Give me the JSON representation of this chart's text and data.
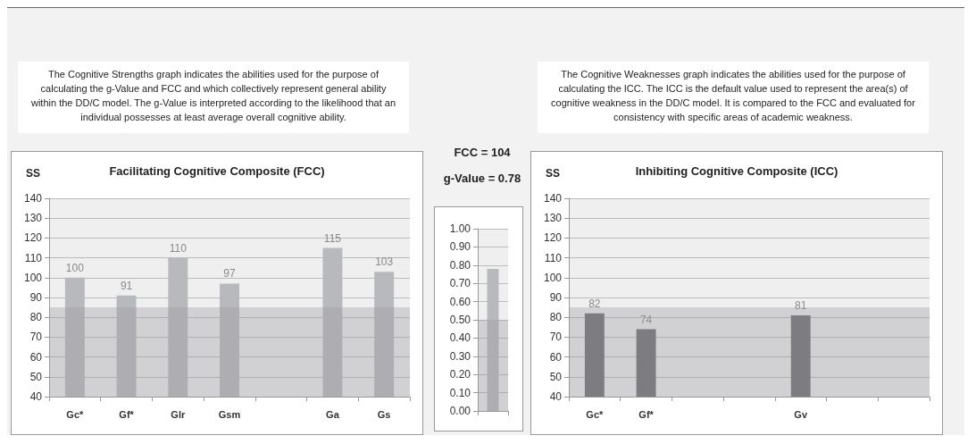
{
  "chart_data": [
    {
      "type": "bar",
      "title": "Facilitating Cognitive Composite (FCC)",
      "ylabel": "SS",
      "annotations": [
        "The Cognitive Strengths graph indicates the abilities used for the purpose of calculating the g-Value and FCC and which collectively represent general ability within the DD/C model. The g-Value is interpreted according to the likelihood that an individual possesses at least average overall cognitive ability."
      ],
      "categories": [
        "Gc*",
        "Gf*",
        "Glr",
        "Gsm",
        null,
        "Ga",
        "Gs"
      ],
      "values": [
        100,
        91,
        110,
        97,
        null,
        115,
        103
      ],
      "color": "#b8b9bc",
      "ylim": [
        40,
        140
      ],
      "yticks": [
        40,
        50,
        60,
        70,
        80,
        90,
        100,
        110,
        120,
        130,
        140
      ],
      "grid": "y",
      "data_labels": true,
      "bands": [
        {
          "axis": "y",
          "from": 40,
          "to": 85,
          "color": "#9b9ca0"
        }
      ]
    },
    {
      "type": "bar",
      "title": "FCC = 104",
      "subtitle": "g-Value = 0.78",
      "categories": [
        null
      ],
      "values": [
        0.78
      ],
      "color": "#b8b9bc",
      "ylim": [
        0,
        1
      ],
      "yticks": [
        {
          "value": 0,
          "label": "0.00"
        },
        {
          "value": 0.1,
          "label": "0.10"
        },
        {
          "value": 0.2,
          "label": "0.20"
        },
        {
          "value": 0.3,
          "label": "0.30"
        },
        {
          "value": 0.4,
          "label": "0.40"
        },
        {
          "value": 0.5,
          "label": "0.50"
        },
        {
          "value": 0.6,
          "label": "0.60"
        },
        {
          "value": 0.7,
          "label": "0.70"
        },
        {
          "value": 0.8,
          "label": "0.80"
        },
        {
          "value": 0.9,
          "label": "0.90"
        },
        {
          "value": 1,
          "label": "1.00"
        }
      ],
      "grid": "y",
      "bands": [
        {
          "axis": "y",
          "from": 0,
          "to": 0.5,
          "color": "#9b9ca0"
        }
      ]
    },
    {
      "type": "bar",
      "title": "Inhibiting Cognitive Composite (ICC)",
      "ylabel": "SS",
      "annotations": [
        "The Cognitive Weaknesses graph indicates the abilities used for the purpose of calculating the ICC. The ICC is the default value used to represent the area(s) of cognitive weakness in the DD/C model. It is compared to the FCC and evaluated for consistency with specific areas of academic weakness."
      ],
      "categories": [
        "Gc*",
        "Gf*",
        null,
        null,
        "Gv",
        null,
        null
      ],
      "values": [
        82,
        74,
        null,
        null,
        81,
        null,
        null
      ],
      "color": "#6d6e71",
      "ylim": [
        40,
        140
      ],
      "yticks": [
        40,
        50,
        60,
        70,
        80,
        90,
        100,
        110,
        120,
        130,
        140
      ],
      "grid": "y",
      "data_labels": true,
      "bands": [
        {
          "axis": "y",
          "from": 40,
          "to": 85,
          "color": "#9b9ca0"
        }
      ]
    }
  ]
}
